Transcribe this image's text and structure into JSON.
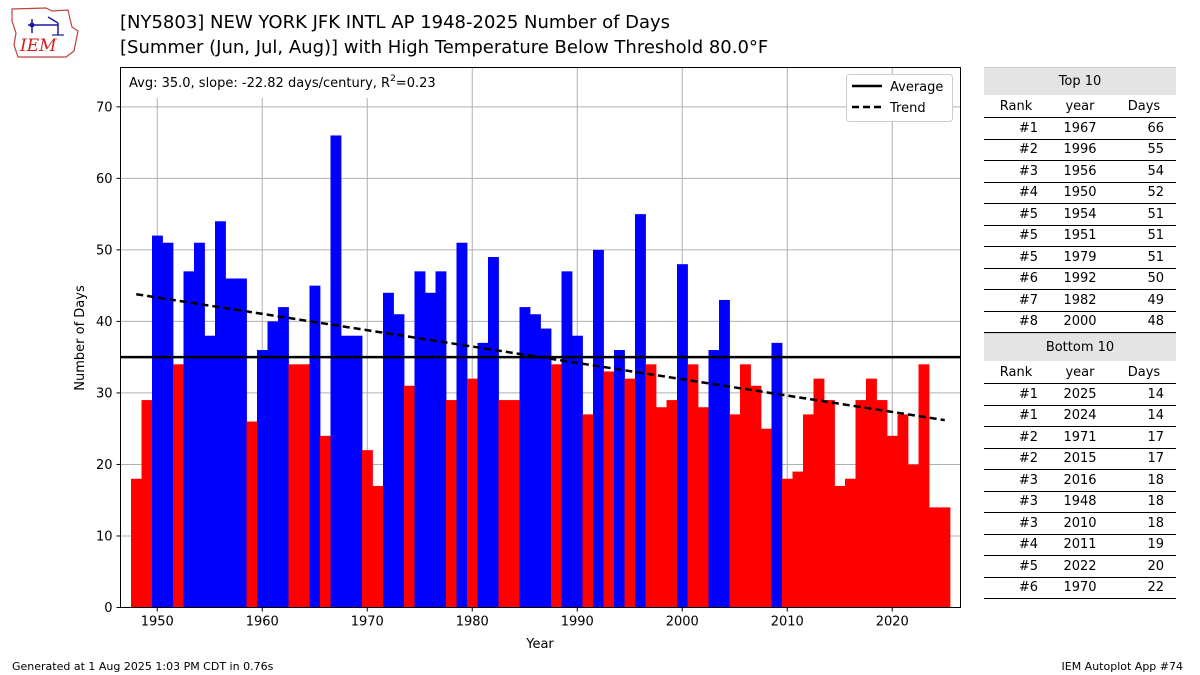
{
  "logo": {
    "text": "IEM"
  },
  "header": {
    "title_line1": "[NY5803] NEW YORK JFK INTL AP 1948-2025 Number of Days",
    "title_line2": "[Summer (Jun, Jul, Aug)] with High Temperature Below Threshold 80.0°F"
  },
  "footer": {
    "generated": "Generated at 1 Aug 2025 1:03 PM CDT in 0.76s",
    "app": "IEM Autoplot App #74"
  },
  "colors": {
    "above": "#0000ff",
    "below": "#ff0000"
  },
  "chart_data": {
    "type": "bar",
    "title": "[NY5803] NEW YORK JFK INTL AP 1948-2025 Number of Days [Summer (Jun, Jul, Aug)] with High Temperature Below Threshold 80.0°F",
    "xlabel": "Year",
    "ylabel": "Number of Days",
    "xlim": [
      1946.5,
      2026.5
    ],
    "ylim": [
      0,
      75.5
    ],
    "xticks": [
      1950,
      1960,
      1970,
      1980,
      1990,
      2000,
      2010,
      2020
    ],
    "yticks": [
      0,
      10,
      20,
      30,
      40,
      50,
      60,
      70
    ],
    "grid": true,
    "legend_position": "top-right",
    "legend": [
      "Average",
      "Trend"
    ],
    "annotation": {
      "prefix": "Avg: 35.0, slope: -22.82 days/century, R",
      "superscript": "2",
      "suffix": "=0.23"
    },
    "average": 35.0,
    "trend": {
      "start": [
        1948,
        43.8
      ],
      "end": [
        2025,
        26.2
      ]
    },
    "years": [
      1948,
      1949,
      1950,
      1951,
      1952,
      1953,
      1954,
      1955,
      1956,
      1957,
      1958,
      1959,
      1960,
      1961,
      1962,
      1963,
      1964,
      1965,
      1966,
      1967,
      1968,
      1969,
      1970,
      1971,
      1972,
      1973,
      1974,
      1975,
      1976,
      1977,
      1978,
      1979,
      1980,
      1981,
      1982,
      1983,
      1984,
      1985,
      1986,
      1987,
      1988,
      1989,
      1990,
      1991,
      1992,
      1993,
      1994,
      1995,
      1996,
      1997,
      1998,
      1999,
      2000,
      2001,
      2002,
      2003,
      2004,
      2005,
      2006,
      2007,
      2008,
      2009,
      2010,
      2011,
      2012,
      2013,
      2014,
      2015,
      2016,
      2017,
      2018,
      2019,
      2020,
      2021,
      2022,
      2023,
      2024,
      2025
    ],
    "values": [
      18,
      29,
      52,
      51,
      34,
      47,
      51,
      38,
      54,
      46,
      46,
      26,
      36,
      40,
      42,
      34,
      34,
      45,
      24,
      66,
      38,
      38,
      22,
      17,
      44,
      41,
      31,
      47,
      44,
      47,
      29,
      51,
      32,
      37,
      49,
      29,
      29,
      42,
      41,
      39,
      34,
      47,
      38,
      27,
      50,
      33,
      36,
      32,
      55,
      34,
      28,
      29,
      48,
      34,
      28,
      36,
      43,
      27,
      34,
      31,
      25,
      37,
      18,
      19,
      27,
      32,
      29,
      17,
      18,
      29,
      32,
      29,
      24,
      27,
      20,
      34,
      14,
      14
    ]
  },
  "tables": {
    "headers": {
      "rank": "Rank",
      "year": "year",
      "days": "Days"
    },
    "top": {
      "title": "Top 10",
      "rows": [
        {
          "rank": "#1",
          "year": "1967",
          "days": "66"
        },
        {
          "rank": "#2",
          "year": "1996",
          "days": "55"
        },
        {
          "rank": "#3",
          "year": "1956",
          "days": "54"
        },
        {
          "rank": "#4",
          "year": "1950",
          "days": "52"
        },
        {
          "rank": "#5",
          "year": "1954",
          "days": "51"
        },
        {
          "rank": "#5",
          "year": "1951",
          "days": "51"
        },
        {
          "rank": "#5",
          "year": "1979",
          "days": "51"
        },
        {
          "rank": "#6",
          "year": "1992",
          "days": "50"
        },
        {
          "rank": "#7",
          "year": "1982",
          "days": "49"
        },
        {
          "rank": "#8",
          "year": "2000",
          "days": "48"
        }
      ]
    },
    "bottom": {
      "title": "Bottom 10",
      "rows": [
        {
          "rank": "#1",
          "year": "2025",
          "days": "14"
        },
        {
          "rank": "#1",
          "year": "2024",
          "days": "14"
        },
        {
          "rank": "#2",
          "year": "1971",
          "days": "17"
        },
        {
          "rank": "#2",
          "year": "2015",
          "days": "17"
        },
        {
          "rank": "#3",
          "year": "2016",
          "days": "18"
        },
        {
          "rank": "#3",
          "year": "1948",
          "days": "18"
        },
        {
          "rank": "#3",
          "year": "2010",
          "days": "18"
        },
        {
          "rank": "#4",
          "year": "2011",
          "days": "19"
        },
        {
          "rank": "#5",
          "year": "2022",
          "days": "20"
        },
        {
          "rank": "#6",
          "year": "1970",
          "days": "22"
        }
      ]
    }
  }
}
